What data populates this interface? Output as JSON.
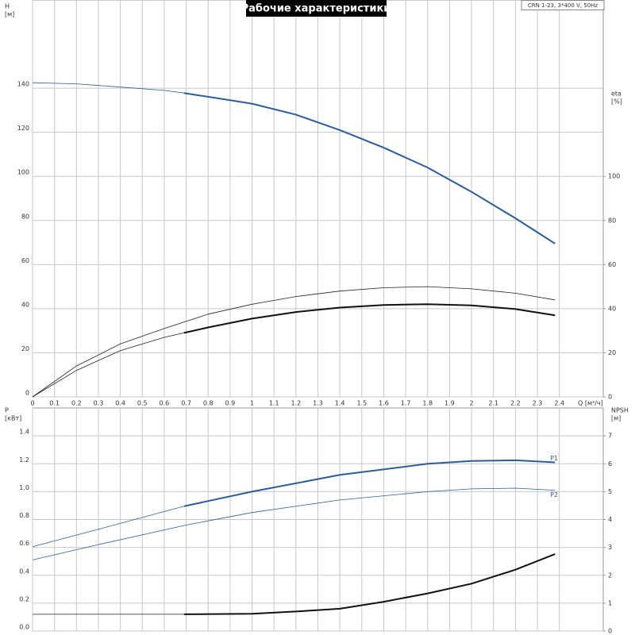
{
  "chart_data": [
    {
      "type": "line",
      "title": "Рабочие характеристики",
      "annotation": "CRN 1-23, 3*400 V, 50Hz",
      "xlabel": "Q [м³/ч]",
      "ylabel": [
        "H",
        "[м]"
      ],
      "y2label": [
        "eta",
        "[%]"
      ],
      "xlim": [
        0,
        2.6
      ],
      "xticks": [
        0,
        0.1,
        0.2,
        0.3,
        0.4,
        0.5,
        0.6,
        0.7,
        0.8,
        0.9,
        1.0,
        1.1,
        1.2,
        1.3,
        1.4,
        1.5,
        1.6,
        1.7,
        1.8,
        1.9,
        2.0,
        2.1,
        2.2,
        2.3,
        2.4
      ],
      "xtick_labels": true,
      "ylim": [
        0,
        180
      ],
      "yticks": [
        0,
        20,
        40,
        60,
        80,
        100,
        120,
        140
      ],
      "y2lim": [
        0,
        180
      ],
      "y2ticks": [
        0,
        20,
        40,
        60,
        80,
        100
      ],
      "grid": true,
      "series": [
        {
          "color": "#2b5c9b",
          "width": 0.8,
          "x": [
            0,
            0.2,
            0.4,
            0.6,
            0.69
          ],
          "values": [
            142.5,
            142,
            140.5,
            139,
            137.8
          ]
        },
        {
          "color": "#2b5c9b",
          "width": 2,
          "x": [
            0.69,
            1.0,
            1.2,
            1.4,
            1.6,
            1.8,
            2.0,
            2.2,
            2.38
          ],
          "values": [
            137.8,
            133,
            128,
            121,
            113,
            104,
            93,
            81,
            69.5
          ]
        },
        {
          "color": "#222222",
          "width": 0.8,
          "axis": "y2",
          "x": [
            0,
            0.2,
            0.4,
            0.6,
            0.8,
            1.0,
            1.2,
            1.4,
            1.6,
            1.8,
            2.0,
            2.2,
            2.38
          ],
          "values": [
            0,
            14,
            24,
            31,
            37.5,
            42,
            45.5,
            48,
            49.5,
            50,
            49,
            47,
            44
          ]
        },
        {
          "color": "#222222",
          "width": 0.8,
          "axis": "y2",
          "x": [
            0,
            0.2,
            0.4,
            0.6,
            0.69
          ],
          "values": [
            0,
            12,
            21,
            27,
            29
          ]
        },
        {
          "color": "#111111",
          "width": 2,
          "axis": "y2",
          "x": [
            0.69,
            0.8,
            1.0,
            1.2,
            1.4,
            1.6,
            1.8,
            2.0,
            2.2,
            2.38
          ],
          "values": [
            29,
            31.5,
            35.5,
            38.5,
            40.5,
            41.7,
            42,
            41.5,
            39.8,
            37
          ]
        }
      ]
    },
    {
      "type": "line",
      "ylabel": [
        "P",
        "[кВт]"
      ],
      "y2label": [
        "NPSH",
        "[м]"
      ],
      "xlim": [
        0,
        2.6
      ],
      "xticks": [
        0,
        0.1,
        0.2,
        0.3,
        0.4,
        0.5,
        0.6,
        0.7,
        0.8,
        0.9,
        1.0,
        1.1,
        1.2,
        1.3,
        1.4,
        1.5,
        1.6,
        1.7,
        1.8,
        1.9,
        2.0,
        2.1,
        2.2,
        2.3,
        2.4
      ],
      "xtick_labels": false,
      "ylim": [
        0,
        1.6
      ],
      "yticks": [
        {
          "value": 0,
          "label": "0.0"
        },
        0.2,
        0.4,
        0.6,
        0.8,
        {
          "value": 1,
          "label": "1.0"
        },
        1.2,
        1.4
      ],
      "y2lim": [
        0,
        8
      ],
      "y2ticks": [
        0,
        1,
        2,
        3,
        4,
        5,
        6,
        7
      ],
      "grid": true,
      "series": [
        {
          "color": "#2b5c9b",
          "width": 0.8,
          "x": [
            0,
            0.3,
            0.69
          ],
          "values": [
            0.605,
            0.73,
            0.895
          ]
        },
        {
          "name": "P1",
          "label_side": "above",
          "color": "#2b5c9b",
          "width": 2,
          "x": [
            0.69,
            1.0,
            1.4,
            1.8,
            2.0,
            2.2,
            2.38
          ],
          "values": [
            0.895,
            1.0,
            1.12,
            1.2,
            1.22,
            1.225,
            1.21
          ]
        },
        {
          "name": "P2",
          "label_side": "below",
          "color": "#2b5c9b",
          "width": 0.8,
          "x": [
            0,
            0.3,
            0.7,
            1.0,
            1.4,
            1.8,
            2.0,
            2.2,
            2.38
          ],
          "values": [
            0.51,
            0.62,
            0.76,
            0.85,
            0.94,
            1.0,
            1.02,
            1.025,
            1.01
          ]
        },
        {
          "color": "#222222",
          "width": 0.8,
          "axis": "y2",
          "x": [
            0,
            0.69
          ],
          "values": [
            0.6,
            0.6
          ]
        },
        {
          "color": "#111111",
          "width": 2,
          "axis": "y2",
          "x": [
            0.69,
            1.0,
            1.2,
            1.4,
            1.6,
            1.8,
            2.0,
            2.2,
            2.38
          ],
          "values": [
            0.6,
            0.62,
            0.7,
            0.8,
            1.05,
            1.35,
            1.7,
            2.2,
            2.76
          ]
        }
      ]
    }
  ]
}
